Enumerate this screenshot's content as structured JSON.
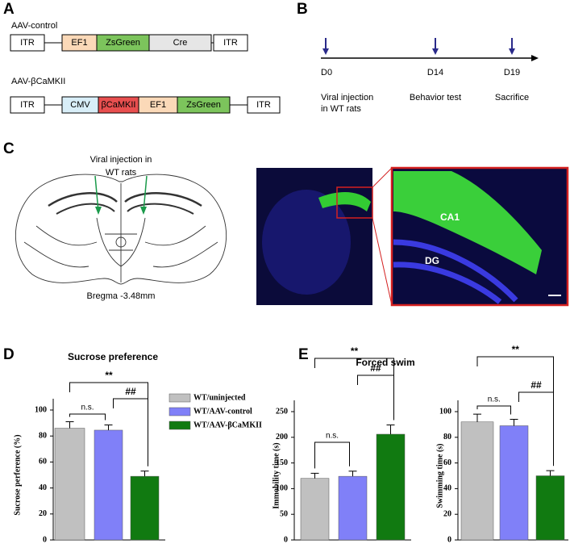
{
  "panels": {
    "A": {
      "label": "A",
      "constructs": [
        {
          "name": "AAV-control",
          "elements": [
            "ITR",
            "EF1",
            "ZsGreen",
            "Cre",
            "ITR"
          ]
        },
        {
          "name": "AAV-βCaMKII",
          "elements": [
            "ITR",
            "CMV",
            "βCaMKII",
            "EF1",
            "ZsGreen",
            "ITR"
          ]
        }
      ]
    },
    "B": {
      "label": "B",
      "timepoints": [
        {
          "day": "D0",
          "event": [
            "Viral injection",
            "in WT rats"
          ]
        },
        {
          "day": "D14",
          "event": [
            "Behavior test"
          ]
        },
        {
          "day": "D19",
          "event": [
            "Sacrifice"
          ]
        }
      ]
    },
    "C": {
      "label": "C",
      "injection_label": [
        "Viral injection in",
        "WT rats"
      ],
      "bregma": "Bregma -3.48mm",
      "regions": [
        "CA1",
        "DG"
      ]
    },
    "D": {
      "label": "D"
    },
    "E": {
      "label": "E",
      "title": "Forced swim"
    }
  },
  "chart_data": [
    {
      "type": "bar",
      "title": "Sucrose preference",
      "ylabel": "Sucrose perference (%)",
      "categories": [
        "WT/uninjected",
        "WT/AAV-control",
        "WT/AAV-βCaMKII"
      ],
      "colors": [
        "#c0c0c0",
        "#8080f8",
        "#117a11"
      ],
      "values": [
        86,
        84.5,
        49
      ],
      "errors": [
        5,
        4,
        4
      ],
      "ylim": [
        0,
        100
      ],
      "yticks": [
        0,
        20,
        40,
        60,
        80,
        100
      ],
      "annotations": [
        "**",
        "##",
        "n.s."
      ],
      "legend": "right"
    },
    {
      "type": "bar",
      "ylabel": "Immobility time (s)",
      "categories": [
        null,
        null,
        null
      ],
      "colors": [
        "#c0c0c0",
        "#8080f8",
        "#117a11"
      ],
      "values": [
        120,
        124,
        206
      ],
      "errors": [
        10,
        10,
        18
      ],
      "ylim": [
        0,
        250
      ],
      "yticks": [
        0,
        50,
        100,
        150,
        200,
        250
      ],
      "annotations": [
        "**",
        "##",
        "n.s."
      ]
    },
    {
      "type": "bar",
      "ylabel": "Swimming time (s)",
      "categories": [
        null,
        null,
        null
      ],
      "colors": [
        "#c0c0c0",
        "#8080f8",
        "#117a11"
      ],
      "values": [
        92,
        89,
        50
      ],
      "errors": [
        6,
        5,
        4
      ],
      "ylim": [
        0,
        100
      ],
      "yticks": [
        0,
        20,
        40,
        60,
        80,
        100
      ],
      "annotations": [
        "**",
        "##",
        "n.s."
      ]
    }
  ]
}
